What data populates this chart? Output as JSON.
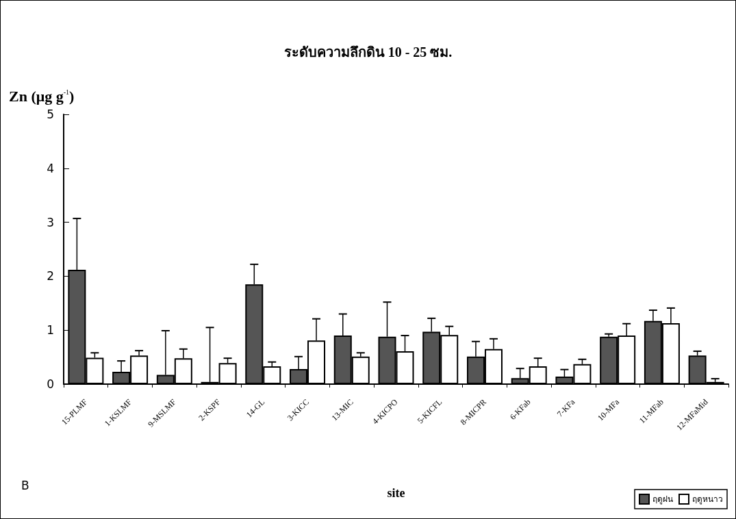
{
  "chart_data": {
    "type": "bar",
    "title": "ระดับความลึกดิน 10 - 25 ซม.",
    "xlabel": "site",
    "ylabel": "Zn (μg g$^{-1}$)",
    "categories": [
      "15-PLMF",
      "1-KSLMF",
      "9-MSLMF",
      "2-KSPF",
      "14-GL",
      "3-KICC",
      "13-MIC",
      "4-KICPO",
      "5-KICFL",
      "8-MICPR",
      "6-KFab",
      "7-KFa",
      "10-MFa",
      "11-MFab",
      "12-MFaMid"
    ],
    "series": [
      {
        "name": "ฤดูฝน",
        "color": "#555555",
        "values": [
          2.12,
          0.23,
          0.17,
          0.04,
          1.85,
          0.28,
          0.9,
          0.88,
          0.97,
          0.51,
          0.11,
          0.14,
          0.88,
          1.17,
          0.53
        ],
        "errors": [
          0.95,
          0.2,
          0.82,
          1.01,
          0.37,
          0.23,
          0.4,
          0.64,
          0.25,
          0.28,
          0.18,
          0.13,
          0.05,
          0.2,
          0.08
        ]
      },
      {
        "name": "ฤดูหนาว",
        "color": "#ffffff",
        "values": [
          0.49,
          0.53,
          0.48,
          0.39,
          0.33,
          0.81,
          0.51,
          0.61,
          0.91,
          0.65,
          0.33,
          0.37,
          0.9,
          1.13,
          0.04
        ],
        "errors": [
          0.09,
          0.09,
          0.17,
          0.09,
          0.08,
          0.4,
          0.07,
          0.29,
          0.16,
          0.19,
          0.15,
          0.09,
          0.22,
          0.28,
          0.06
        ]
      }
    ],
    "ylim": [
      0,
      5
    ],
    "yticks": [
      0,
      1,
      2,
      3,
      4,
      5
    ],
    "grid": false,
    "legend": "bottom right",
    "annotations": [
      "B"
    ]
  }
}
